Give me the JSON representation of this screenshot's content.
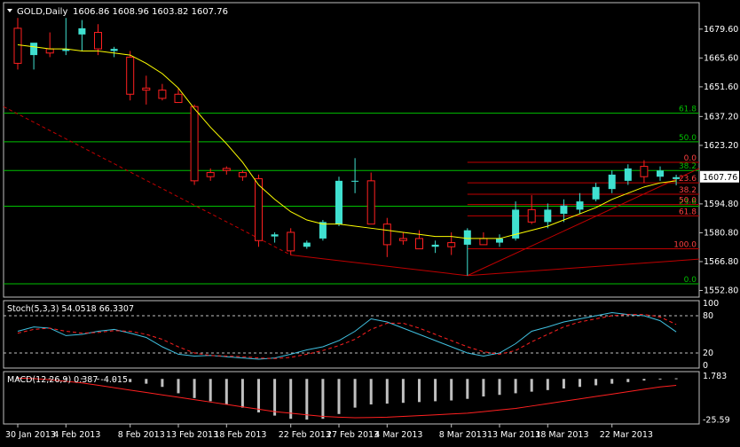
{
  "header": {
    "symbol": "GOLD,Daily",
    "ohlc": "1606.86 1608.96 1603.82 1607.76"
  },
  "stoch_label": "Stoch(5,3,3) 54.0518 66.3307",
  "macd_label": "MACD(12,26,9) 0.387 -4.015",
  "colors": {
    "background": "#000000",
    "bull_candle": "#40e0d0",
    "bear_candle": "#ff2020",
    "ma_line": "#ffff00",
    "fib_green": "#00c000",
    "fib_red": "#c00000",
    "stoch_main": "#40c0e0",
    "stoch_signal": "#ff2020",
    "macd_hist": "#c0c0c0",
    "macd_signal": "#ff2020",
    "current_price_bg": "#ffffff"
  },
  "chart_data": [
    {
      "type": "candlestick",
      "title": "GOLD,Daily",
      "ylim": [
        1550,
        1692
      ],
      "y_ticks": [
        "1679.60",
        "1665.60",
        "1651.60",
        "1637.20",
        "1623.20",
        "1594.80",
        "1580.80",
        "1566.80",
        "1552.80"
      ],
      "current_price": "1607.76",
      "x_labels": [
        {
          "label": "30 Jan 2013",
          "index": 0
        },
        {
          "label": "4 Feb 2013",
          "index": 3
        },
        {
          "label": "8 Feb 2013",
          "index": 7
        },
        {
          "label": "13 Feb 2013",
          "index": 10
        },
        {
          "label": "18 Feb 2013",
          "index": 13
        },
        {
          "label": "22 Feb 2013",
          "index": 17
        },
        {
          "label": "27 Feb 2013",
          "index": 20
        },
        {
          "label": "4 Mar 2013",
          "index": 23
        },
        {
          "label": "8 Mar 2013",
          "index": 27
        },
        {
          "label": "13 Mar 2013",
          "index": 30
        },
        {
          "label": "18 Mar 2013",
          "index": 33
        },
        {
          "label": "22 Mar 2013",
          "index": 37
        }
      ],
      "candles": [
        {
          "o": 1680,
          "h": 1685,
          "l": 1660,
          "c": 1663
        },
        {
          "o": 1667,
          "h": 1672,
          "l": 1660,
          "c": 1673
        },
        {
          "o": 1670,
          "h": 1678,
          "l": 1666,
          "c": 1668
        },
        {
          "o": 1669,
          "h": 1685,
          "l": 1667,
          "c": 1670
        },
        {
          "o": 1677,
          "h": 1684,
          "l": 1669,
          "c": 1680
        },
        {
          "o": 1678,
          "h": 1682,
          "l": 1667,
          "c": 1670
        },
        {
          "o": 1669,
          "h": 1671,
          "l": 1666,
          "c": 1670
        },
        {
          "o": 1666,
          "h": 1669,
          "l": 1645,
          "c": 1648
        },
        {
          "o": 1651,
          "h": 1657,
          "l": 1643,
          "c": 1650
        },
        {
          "o": 1650,
          "h": 1653,
          "l": 1645,
          "c": 1646
        },
        {
          "o": 1648,
          "h": 1651,
          "l": 1645,
          "c": 1644
        },
        {
          "o": 1642,
          "h": 1643,
          "l": 1604,
          "c": 1606
        },
        {
          "o": 1610,
          "h": 1612,
          "l": 1606,
          "c": 1608
        },
        {
          "o": 1612,
          "h": 1613,
          "l": 1609,
          "c": 1611
        },
        {
          "o": 1610,
          "h": 1611,
          "l": 1606,
          "c": 1608
        },
        {
          "o": 1607,
          "h": 1609,
          "l": 1574,
          "c": 1577
        },
        {
          "o": 1579,
          "h": 1581,
          "l": 1576,
          "c": 1580
        },
        {
          "o": 1581,
          "h": 1583,
          "l": 1570,
          "c": 1572
        },
        {
          "o": 1574,
          "h": 1577,
          "l": 1573,
          "c": 1576
        },
        {
          "o": 1578,
          "h": 1587,
          "l": 1577,
          "c": 1586
        },
        {
          "o": 1585,
          "h": 1608,
          "l": 1584,
          "c": 1606
        },
        {
          "o": 1606,
          "h": 1617,
          "l": 1600,
          "c": 1606
        },
        {
          "o": 1606,
          "h": 1610,
          "l": 1585,
          "c": 1585
        },
        {
          "o": 1585,
          "h": 1588,
          "l": 1569,
          "c": 1575
        },
        {
          "o": 1578,
          "h": 1581,
          "l": 1575,
          "c": 1577
        },
        {
          "o": 1578,
          "h": 1582,
          "l": 1573,
          "c": 1573
        },
        {
          "o": 1574,
          "h": 1577,
          "l": 1571,
          "c": 1575
        },
        {
          "o": 1576,
          "h": 1581,
          "l": 1570,
          "c": 1574
        },
        {
          "o": 1575,
          "h": 1583,
          "l": 1560,
          "c": 1582
        },
        {
          "o": 1578,
          "h": 1581,
          "l": 1575,
          "c": 1575
        },
        {
          "o": 1576,
          "h": 1580,
          "l": 1574,
          "c": 1578
        },
        {
          "o": 1578,
          "h": 1596,
          "l": 1577,
          "c": 1592
        },
        {
          "o": 1592,
          "h": 1599,
          "l": 1585,
          "c": 1586
        },
        {
          "o": 1586,
          "h": 1595,
          "l": 1583,
          "c": 1592
        },
        {
          "o": 1590,
          "h": 1597,
          "l": 1586,
          "c": 1594
        },
        {
          "o": 1592,
          "h": 1600,
          "l": 1590,
          "c": 1596
        },
        {
          "o": 1597,
          "h": 1605,
          "l": 1596,
          "c": 1603
        },
        {
          "o": 1602,
          "h": 1611,
          "l": 1600,
          "c": 1609
        },
        {
          "o": 1606,
          "h": 1614,
          "l": 1604,
          "c": 1612
        },
        {
          "o": 1613,
          "h": 1616,
          "l": 1605,
          "c": 1608
        },
        {
          "o": 1608,
          "h": 1613,
          "l": 1606,
          "c": 1611
        },
        {
          "o": 1606.86,
          "h": 1608.96,
          "l": 1603.82,
          "c": 1607.76
        }
      ],
      "moving_average": [
        1672,
        1671,
        1670,
        1670,
        1669,
        1669,
        1668,
        1667,
        1663,
        1658,
        1651,
        1641,
        1632,
        1624,
        1615,
        1604,
        1597,
        1591,
        1587,
        1585,
        1585,
        1584,
        1583,
        1582,
        1581,
        1580,
        1579,
        1579,
        1578,
        1578,
        1578,
        1580,
        1582,
        1584,
        1587,
        1590,
        1593,
        1597,
        1600,
        1603,
        1605,
        1606
      ],
      "fib_green": [
        {
          "label": "61.8",
          "value": 1638.8
        },
        {
          "label": "50.0",
          "value": 1624.9
        },
        {
          "label": "38.2",
          "value": 1611.0
        },
        {
          "label": "23.6",
          "value": 1593.7
        },
        {
          "label": "0.0",
          "value": 1556.0
        }
      ],
      "fib_red": [
        {
          "label": "0.0",
          "value": 1615.0
        },
        {
          "label": "23.6",
          "value": 1605.0
        },
        {
          "label": "38.2",
          "value": 1599.5
        },
        {
          "label": "50.0",
          "value": 1594.5
        },
        {
          "label": "61.8",
          "value": 1589.0
        },
        {
          "label": "100.0",
          "value": 1573.0
        }
      ]
    },
    {
      "type": "line",
      "title": "Stoch(5,3,3) 54.0518 66.3307",
      "ylim": [
        0,
        100
      ],
      "levels": [
        80,
        20
      ],
      "y_ticks": [
        "100",
        "80",
        "20",
        "0"
      ],
      "series": [
        {
          "values": [
            55,
            62,
            60,
            48,
            50,
            55,
            58,
            52,
            45,
            30,
            18,
            15,
            16,
            14,
            12,
            10,
            12,
            18,
            25,
            30,
            40,
            55,
            75,
            70,
            60,
            50,
            40,
            30,
            20,
            15,
            20,
            35,
            55,
            62,
            70,
            75,
            80,
            85,
            82,
            80,
            72,
            54
          ]
        },
        {
          "values": [
            52,
            58,
            60,
            55,
            52,
            53,
            56,
            55,
            50,
            42,
            30,
            20,
            16,
            15,
            14,
            12,
            11,
            13,
            18,
            24,
            32,
            42,
            58,
            68,
            68,
            60,
            50,
            40,
            30,
            22,
            18,
            24,
            38,
            50,
            62,
            70,
            75,
            80,
            82,
            82,
            78,
            66
          ]
        }
      ]
    },
    {
      "type": "bar",
      "title": "MACD(12,26,9) 0.387 -4.015",
      "y_ticks": [
        "1.783",
        "-25.59"
      ],
      "ylim": [
        -26,
        1.8
      ],
      "values": [
        1,
        0.5,
        0.5,
        0.5,
        0.4,
        0.2,
        -0.5,
        -2,
        -3,
        -5,
        -9,
        -12,
        -14,
        -16,
        -18,
        -21,
        -23,
        -25,
        -25.5,
        -25,
        -22,
        -18,
        -16,
        -15.5,
        -15,
        -14.5,
        -14,
        -13.5,
        -12.5,
        -11,
        -10,
        -9,
        -8,
        -7,
        -6,
        -5,
        -4,
        -3,
        -2,
        -1,
        0.2,
        0.387
      ],
      "signal": [
        0.5,
        0.2,
        -0.5,
        -1.5,
        -2.5,
        -4,
        -5.5,
        -7,
        -8.5,
        -10,
        -11.5,
        -13,
        -14.5,
        -16,
        -17.5,
        -19,
        -20.5,
        -21.5,
        -22.5,
        -23.5,
        -24,
        -24.3,
        -24.2,
        -24,
        -23.5,
        -23,
        -22.5,
        -22,
        -21.5,
        -20.5,
        -19.5,
        -18.5,
        -17,
        -15.5,
        -14,
        -12.5,
        -11,
        -9.5,
        -8,
        -6.5,
        -5,
        -4.015
      ]
    }
  ]
}
